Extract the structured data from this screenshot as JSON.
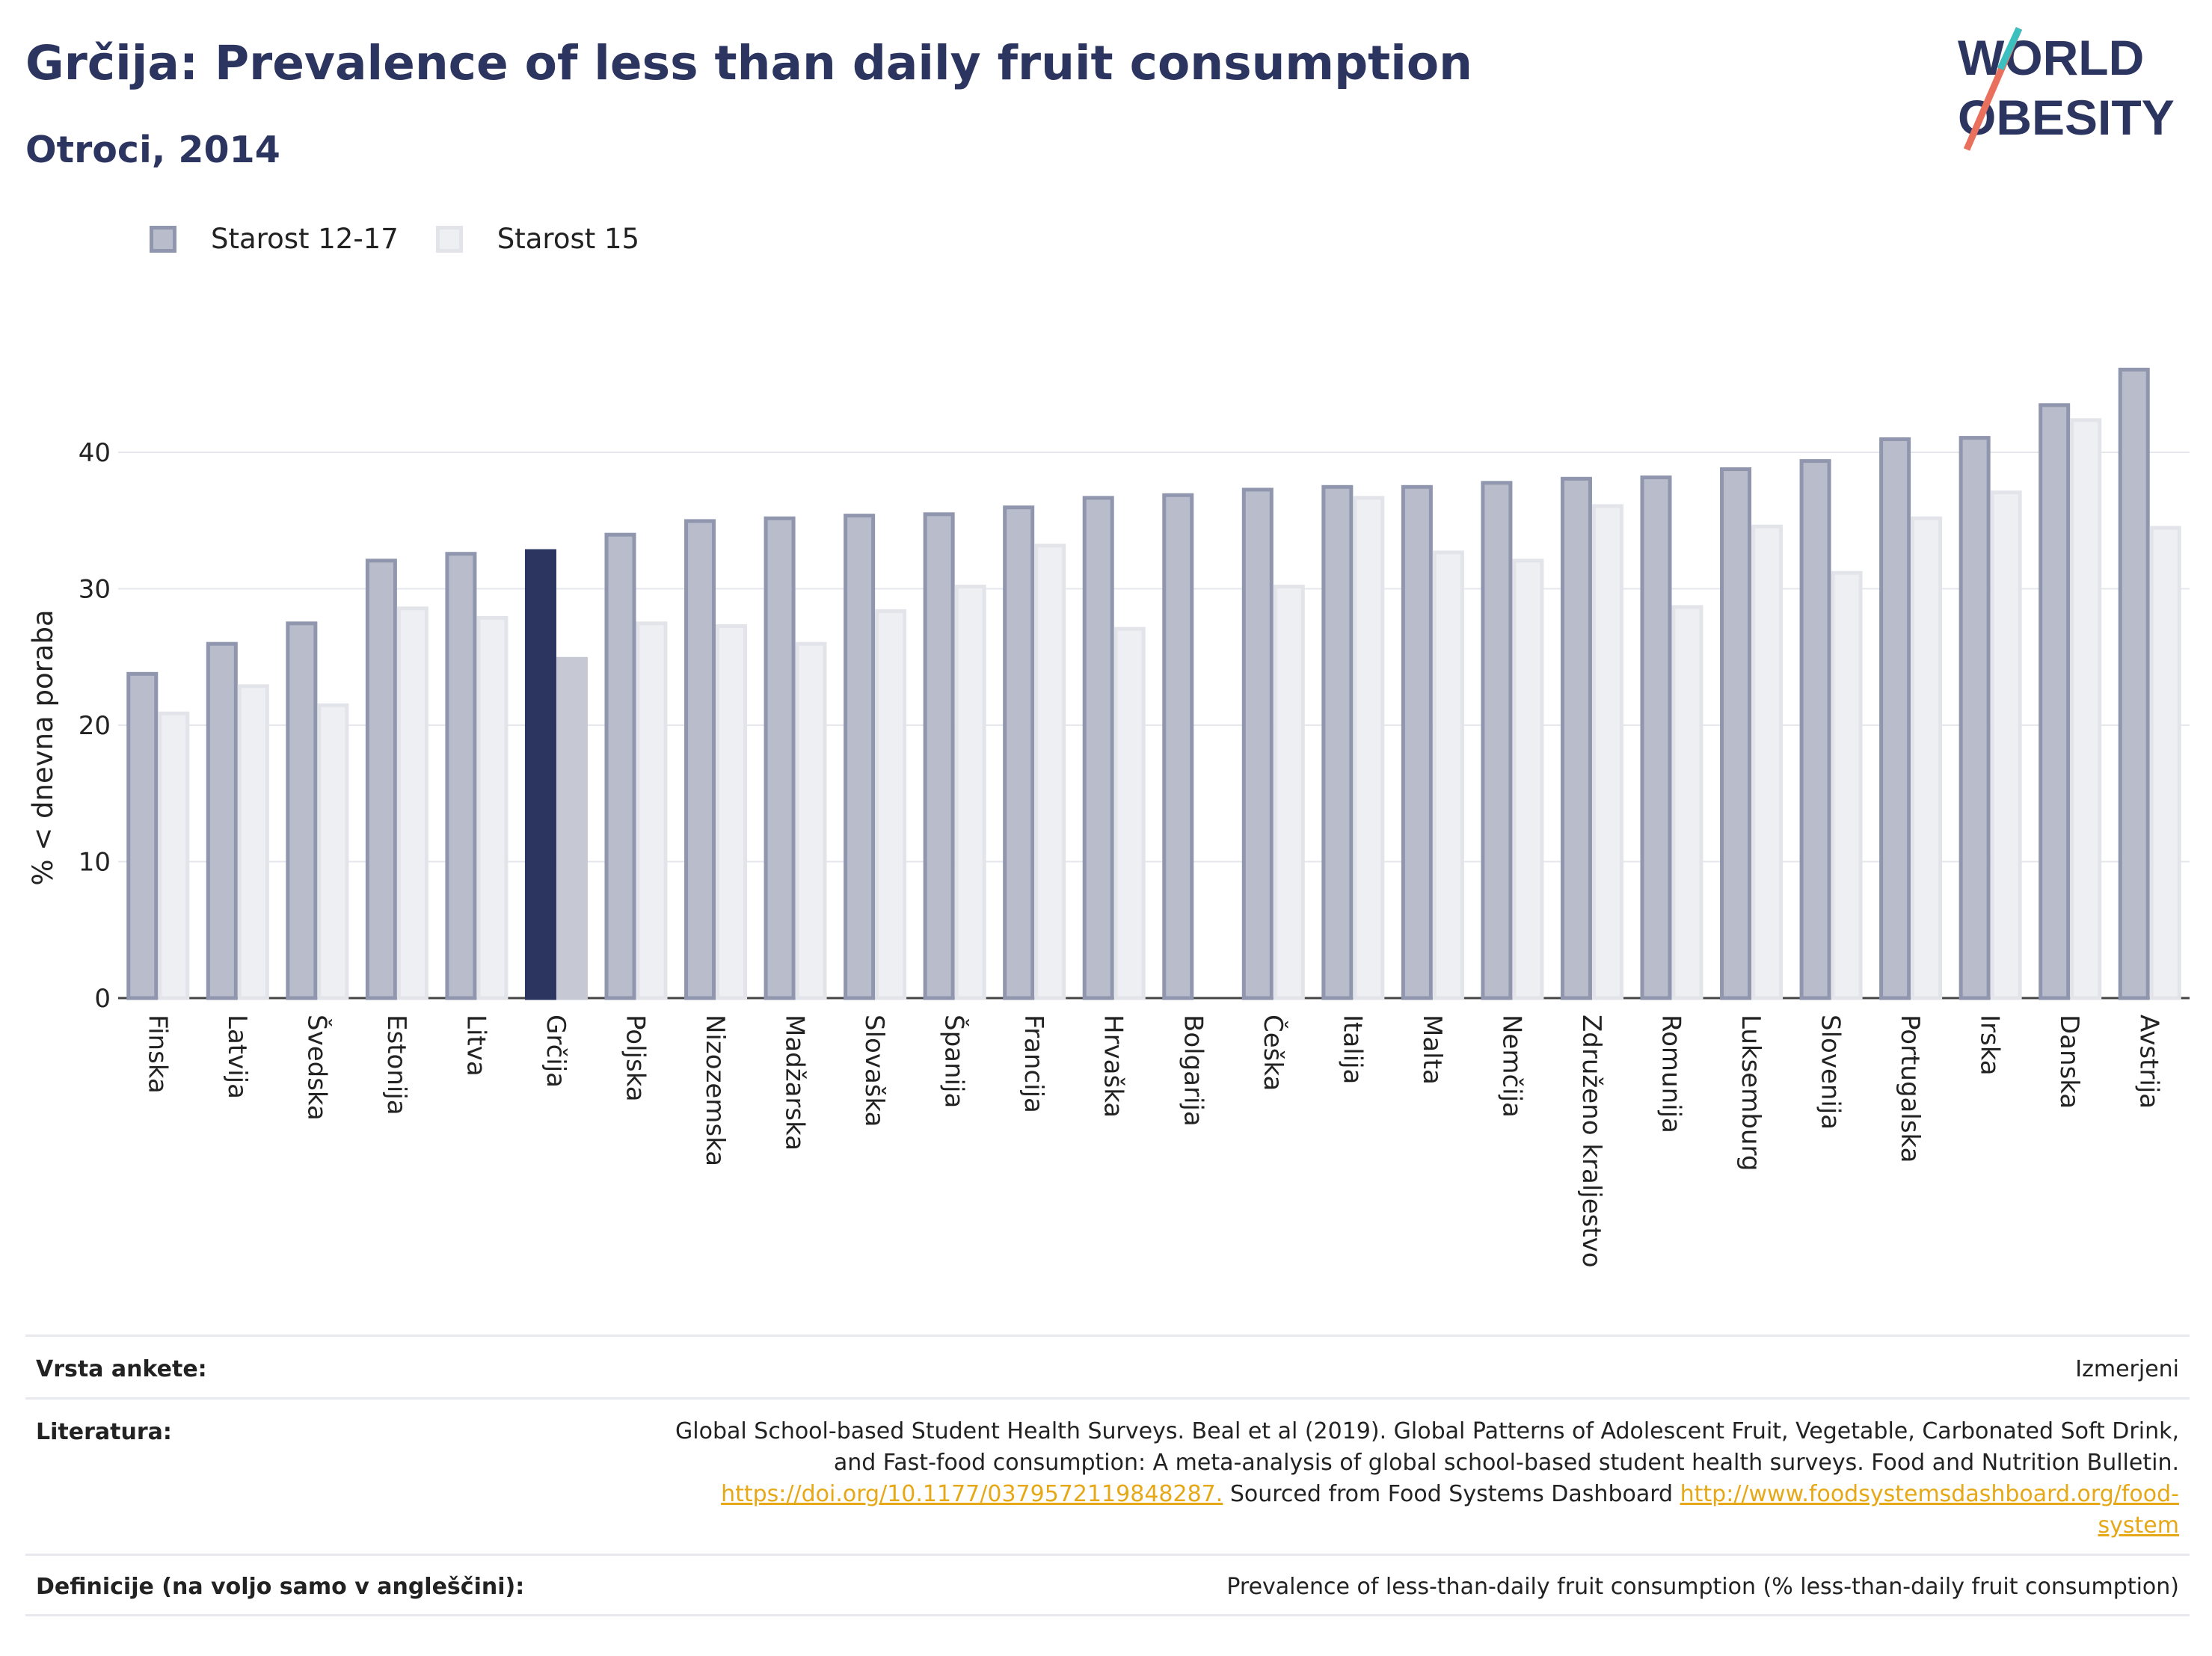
{
  "header": {
    "title": "Grčija: Prevalence of less than daily fruit consumption",
    "subtitle": "Otroci, 2014"
  },
  "logo": {
    "line1": "WORLD",
    "line2": "OBESITY"
  },
  "legend": {
    "series1": "Starost 12-17",
    "series2": "Starost 15"
  },
  "colors": {
    "series1_fill": "#b9bccb",
    "series1_stroke": "#8f96ae",
    "series2_fill": "#eeeff3",
    "series2_stroke": "#e3e4ea",
    "highlight1": "#2b3560",
    "highlight2": "#c6c8d4",
    "title": "#2b3560",
    "link": "#e6a817"
  },
  "chart_data": {
    "type": "bar",
    "ylabel": "% < dnevna poraba",
    "ylim": [
      0,
      50
    ],
    "yticks": [
      0,
      10,
      20,
      30,
      40
    ],
    "grid": true,
    "legend_position": "top-left",
    "highlight": "Grčija",
    "categories": [
      "Finska",
      "Latvija",
      "Švedska",
      "Estonija",
      "Litva",
      "Grčija",
      "Poljska",
      "Nizozemska",
      "Madžarska",
      "Slovaška",
      "Španija",
      "Francija",
      "Hrvaška",
      "Bolgarija",
      "Češka",
      "Italija",
      "Malta",
      "Nemčija",
      "Združeno kraljestvo",
      "Romunija",
      "Luksemburg",
      "Slovenija",
      "Portugalska",
      "Irska",
      "Danska",
      "Avstrija"
    ],
    "series": [
      {
        "name": "Starost 12-17",
        "values": [
          23.9,
          26.1,
          27.6,
          32.2,
          32.7,
          32.9,
          34.1,
          35.1,
          35.3,
          35.5,
          35.6,
          36.1,
          36.8,
          37.0,
          37.4,
          37.6,
          37.6,
          37.9,
          38.2,
          38.3,
          38.9,
          39.5,
          41.1,
          41.2,
          43.6,
          46.2
        ]
      },
      {
        "name": "Starost 15",
        "values": [
          21.0,
          23.0,
          21.6,
          28.7,
          28.0,
          25.0,
          27.6,
          27.4,
          26.1,
          28.5,
          30.3,
          33.3,
          27.2,
          null,
          30.3,
          36.8,
          32.8,
          32.2,
          36.2,
          28.8,
          34.7,
          31.3,
          35.3,
          37.2,
          42.5,
          34.6
        ]
      }
    ]
  },
  "info": {
    "survey_label": "Vrsta ankete:",
    "survey_value": "Izmerjeni",
    "ref_label": "Literatura:",
    "ref_line1": "Global School-based Student Health Surveys. Beal et al (2019). Global Patterns of Adolescent Fruit, Vegetable, Carbonated Soft Drink,",
    "ref_line2": "and Fast-food consumption: A meta-analysis of global school-based student health surveys. Food and Nutrition Bulletin.",
    "ref_link1": "https://doi.org/10.1177/0379572119848287.",
    "ref_mid": " Sourced from Food Systems Dashboard ",
    "ref_link2a": "http://www.foodsystemsdashboard.org/food-",
    "ref_link2b": "system",
    "def_label": "Definicije (na voljo samo v angleščini):",
    "def_value": "Prevalence of less-than-daily fruit consumption (% less-than-daily fruit consumption)"
  }
}
